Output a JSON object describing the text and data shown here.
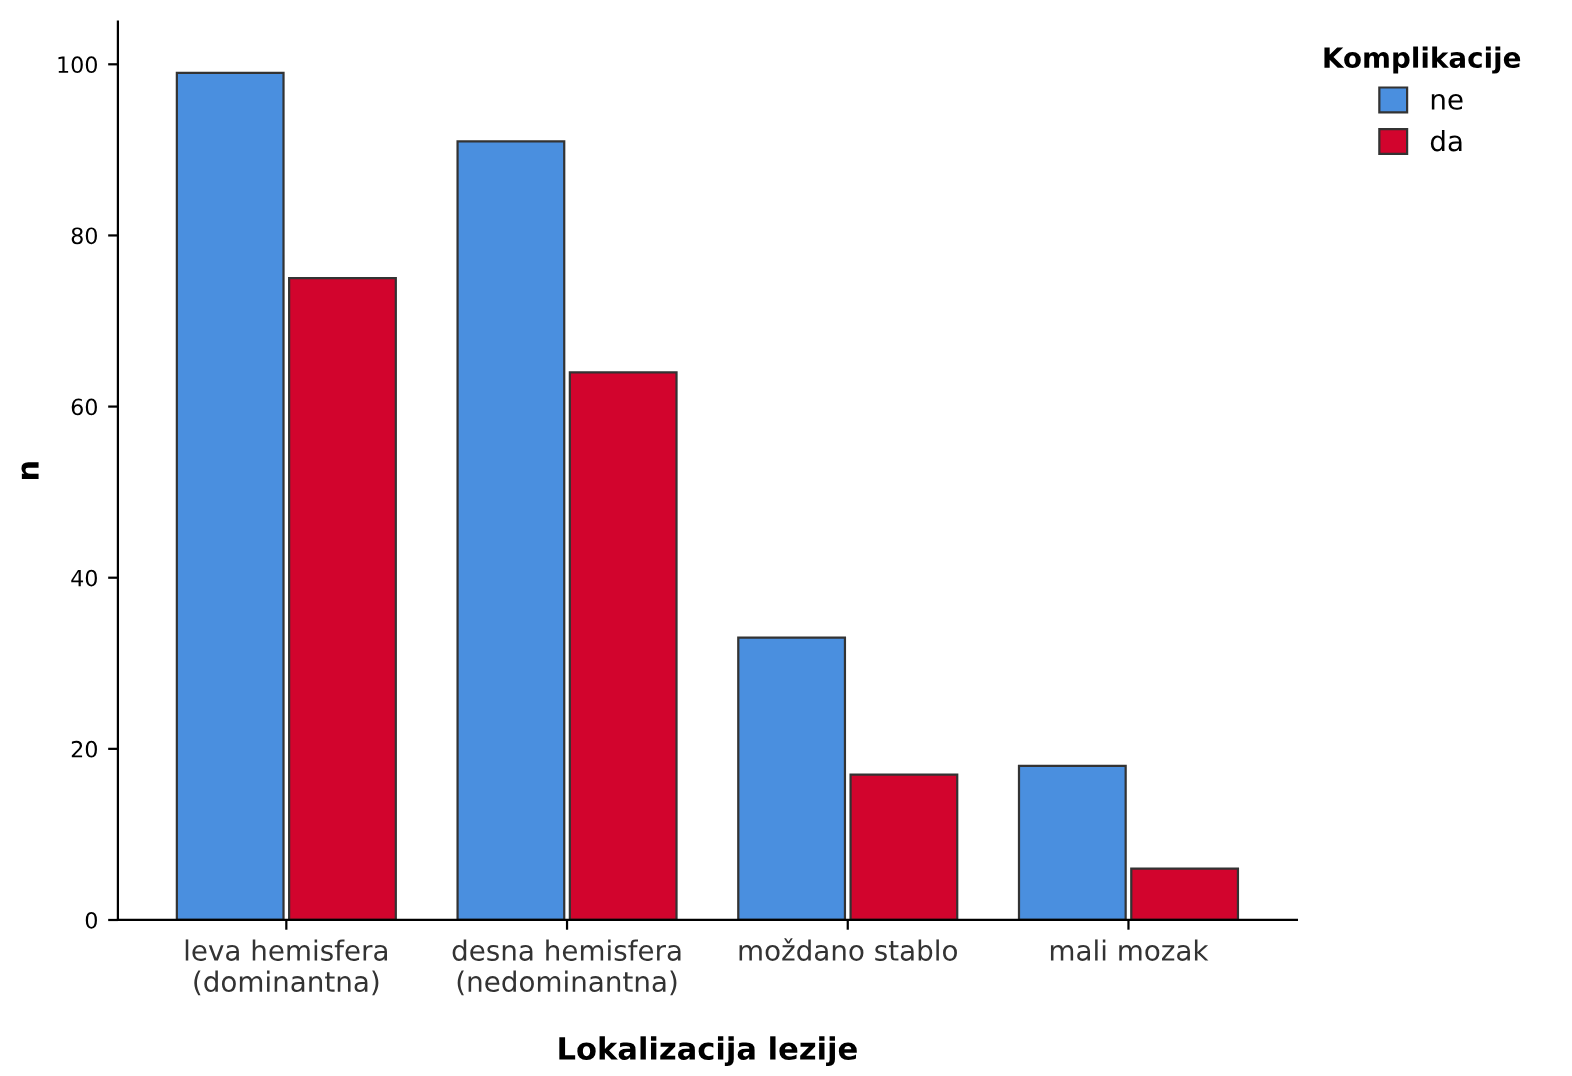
{
  "chart_data": {
    "type": "bar",
    "xlabel": "Lokalizacija lezije",
    "ylabel": "n",
    "legend_title": "Komplikacije",
    "categories": [
      "leva hemisfera\n(dominantna)",
      "desna hemisfera\n(nedominantna)",
      "moždano stablo",
      "mali mozak"
    ],
    "series": [
      {
        "name": "ne",
        "color": "#4a8fdf",
        "values": [
          99,
          91,
          33,
          18
        ]
      },
      {
        "name": "da",
        "color": "#d2042d",
        "values": [
          75,
          64,
          17,
          6
        ]
      }
    ],
    "ylim": [
      0,
      105
    ],
    "yticks": [
      0,
      20,
      40,
      60,
      80,
      100
    ],
    "grid": false,
    "legend": "top right"
  }
}
